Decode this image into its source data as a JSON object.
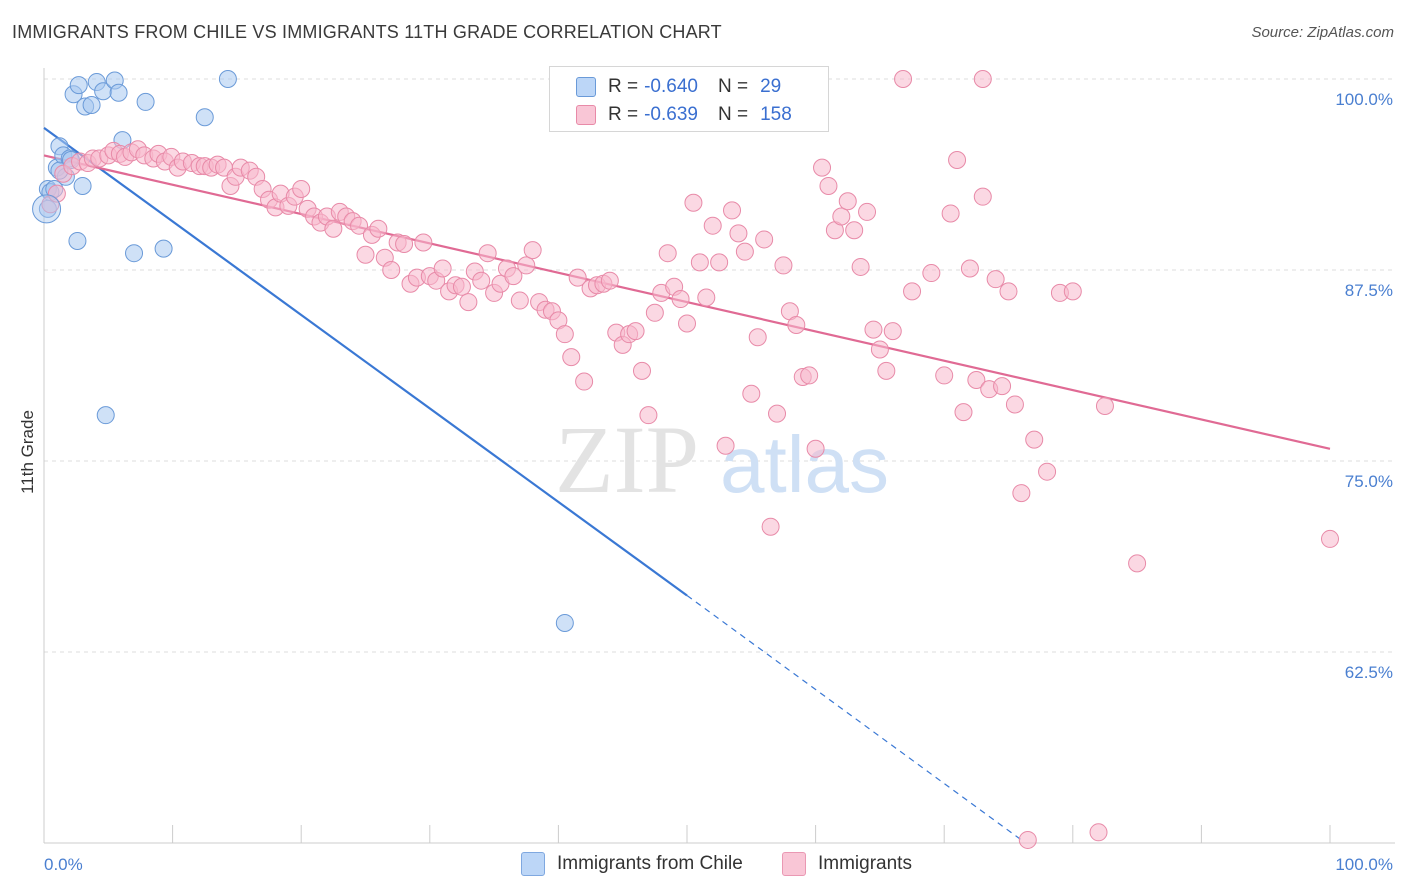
{
  "header": {
    "title": "IMMIGRANTS FROM CHILE VS IMMIGRANTS 11TH GRADE CORRELATION CHART",
    "source": "Source: ZipAtlas.com"
  },
  "legend": {
    "rows": [
      {
        "r_label": "R =",
        "r_value": "-0.640",
        "n_label": "N =",
        "n_value": "29",
        "color": "#a8c8f0",
        "border": "#6a9ad8"
      },
      {
        "r_label": "R =",
        "r_value": "-0.639",
        "n_label": "N =",
        "n_value": "158",
        "color": "#f7b8cc",
        "border": "#e88aa8"
      }
    ]
  },
  "bottom_legend": [
    {
      "label": "Immigrants from Chile",
      "color": "#bcd6f7",
      "border": "#7fa8e0"
    },
    {
      "label": "Immigrants",
      "color": "#f9c6d6",
      "border": "#ea98b3"
    }
  ],
  "watermark": {
    "zip": "ZIP",
    "atlas": "atlas"
  },
  "chart_data": {
    "type": "scatter",
    "xlabel": "",
    "ylabel": "11th Grade",
    "xlim": [
      0,
      100
    ],
    "ylim": [
      50,
      100
    ],
    "x_tick_labels": [
      {
        "value": 0,
        "label": "0.0%"
      },
      {
        "value": 100,
        "label": "100.0%"
      }
    ],
    "y_tick_labels": [
      {
        "value": 100,
        "label": "100.0%"
      },
      {
        "value": 87.5,
        "label": "87.5%"
      },
      {
        "value": 75,
        "label": "75.0%"
      },
      {
        "value": 62.5,
        "label": "62.5%"
      }
    ],
    "grid": "horizontal dashed",
    "series": [
      {
        "name": "Immigrants from Chile",
        "color": "#a8c8f0",
        "stroke": "#6a9ad8",
        "trend": {
          "x0": 0,
          "y0": 96.8,
          "x1": 50,
          "y1": 66.2,
          "dash_to_x": 76,
          "dash_to_y": 50.2,
          "color": "#3a78d4"
        },
        "points": [
          [
            0.3,
            92.8
          ],
          [
            0.5,
            92.6
          ],
          [
            0.8,
            92.8
          ],
          [
            1.0,
            94.2
          ],
          [
            1.2,
            95.6
          ],
          [
            1.5,
            95.0
          ],
          [
            1.7,
            93.6
          ],
          [
            2.0,
            94.8
          ],
          [
            2.3,
            99.0
          ],
          [
            2.7,
            99.6
          ],
          [
            3.2,
            98.2
          ],
          [
            3.7,
            98.3
          ],
          [
            4.1,
            99.8
          ],
          [
            4.6,
            99.2
          ],
          [
            5.5,
            99.9
          ],
          [
            5.8,
            99.1
          ],
          [
            6.1,
            96.0
          ],
          [
            7.9,
            98.5
          ],
          [
            12.5,
            97.5
          ],
          [
            14.3,
            100.0
          ],
          [
            3.0,
            93.0
          ],
          [
            0.3,
            91.5
          ],
          [
            2.6,
            89.4
          ],
          [
            7.0,
            88.6
          ],
          [
            9.3,
            88.9
          ],
          [
            4.8,
            78.0
          ],
          [
            40.5,
            64.4
          ],
          [
            1.2,
            94.0
          ],
          [
            2.1,
            94.7
          ]
        ]
      },
      {
        "name": "Immigrants",
        "color": "#f7b8cc",
        "stroke": "#e88aa8",
        "trend": {
          "x0": 0,
          "y0": 95.0,
          "x1": 100,
          "y1": 75.8,
          "color": "#e06a94"
        },
        "points": [
          [
            0.5,
            91.8
          ],
          [
            1.0,
            92.5
          ],
          [
            1.5,
            93.8
          ],
          [
            2.2,
            94.3
          ],
          [
            2.8,
            94.6
          ],
          [
            3.4,
            94.5
          ],
          [
            3.8,
            94.8
          ],
          [
            4.3,
            94.8
          ],
          [
            5.0,
            95.0
          ],
          [
            5.4,
            95.3
          ],
          [
            5.9,
            95.1
          ],
          [
            6.3,
            94.9
          ],
          [
            6.8,
            95.2
          ],
          [
            7.3,
            95.4
          ],
          [
            7.8,
            95.0
          ],
          [
            8.5,
            94.8
          ],
          [
            8.9,
            95.1
          ],
          [
            9.4,
            94.6
          ],
          [
            9.9,
            94.9
          ],
          [
            10.4,
            94.2
          ],
          [
            10.8,
            94.6
          ],
          [
            11.5,
            94.5
          ],
          [
            12.1,
            94.3
          ],
          [
            12.5,
            94.3
          ],
          [
            13.0,
            94.2
          ],
          [
            13.5,
            94.4
          ],
          [
            14.0,
            94.2
          ],
          [
            14.5,
            93.0
          ],
          [
            14.9,
            93.6
          ],
          [
            15.3,
            94.2
          ],
          [
            16.0,
            94.0
          ],
          [
            16.5,
            93.6
          ],
          [
            17.0,
            92.8
          ],
          [
            17.5,
            92.1
          ],
          [
            18.0,
            91.6
          ],
          [
            18.4,
            92.5
          ],
          [
            19.0,
            91.7
          ],
          [
            19.5,
            92.3
          ],
          [
            20.0,
            92.8
          ],
          [
            20.5,
            91.5
          ],
          [
            21.0,
            91.0
          ],
          [
            21.5,
            90.6
          ],
          [
            22.0,
            91.0
          ],
          [
            22.5,
            90.2
          ],
          [
            23.0,
            91.3
          ],
          [
            23.5,
            91.0
          ],
          [
            24.0,
            90.7
          ],
          [
            24.5,
            90.4
          ],
          [
            25.0,
            88.5
          ],
          [
            25.5,
            89.8
          ],
          [
            26.0,
            90.2
          ],
          [
            26.5,
            88.3
          ],
          [
            27.0,
            87.5
          ],
          [
            27.5,
            89.3
          ],
          [
            28.0,
            89.2
          ],
          [
            28.5,
            86.6
          ],
          [
            29.0,
            87.0
          ],
          [
            29.5,
            89.3
          ],
          [
            30.0,
            87.1
          ],
          [
            30.5,
            86.8
          ],
          [
            31.0,
            87.6
          ],
          [
            31.5,
            86.1
          ],
          [
            32.0,
            86.5
          ],
          [
            32.5,
            86.4
          ],
          [
            33.0,
            85.4
          ],
          [
            33.5,
            87.4
          ],
          [
            34.0,
            86.8
          ],
          [
            34.5,
            88.6
          ],
          [
            35.0,
            86.0
          ],
          [
            35.5,
            86.6
          ],
          [
            36.0,
            87.6
          ],
          [
            36.5,
            87.1
          ],
          [
            37.0,
            85.5
          ],
          [
            37.5,
            87.8
          ],
          [
            38.0,
            88.8
          ],
          [
            38.5,
            85.4
          ],
          [
            39.0,
            84.9
          ],
          [
            39.5,
            84.8
          ],
          [
            40.0,
            84.2
          ],
          [
            40.5,
            83.3
          ],
          [
            41.0,
            81.8
          ],
          [
            41.5,
            87.0
          ],
          [
            42.0,
            80.2
          ],
          [
            42.5,
            86.3
          ],
          [
            43.0,
            86.5
          ],
          [
            43.5,
            86.6
          ],
          [
            44.0,
            86.8
          ],
          [
            44.5,
            83.4
          ],
          [
            45.0,
            82.6
          ],
          [
            45.5,
            83.3
          ],
          [
            46.0,
            83.5
          ],
          [
            46.5,
            80.9
          ],
          [
            47.0,
            78.0
          ],
          [
            47.5,
            84.7
          ],
          [
            48.0,
            86.0
          ],
          [
            48.5,
            88.6
          ],
          [
            49.0,
            86.4
          ],
          [
            49.5,
            85.6
          ],
          [
            50.0,
            84.0
          ],
          [
            50.5,
            91.9
          ],
          [
            51.0,
            88.0
          ],
          [
            51.5,
            85.7
          ],
          [
            52.0,
            90.4
          ],
          [
            52.5,
            88.0
          ],
          [
            53.0,
            76.0
          ],
          [
            53.5,
            91.4
          ],
          [
            54.0,
            89.9
          ],
          [
            54.5,
            88.7
          ],
          [
            55.0,
            79.4
          ],
          [
            55.5,
            83.1
          ],
          [
            56.0,
            89.5
          ],
          [
            56.5,
            70.7
          ],
          [
            57.0,
            78.1
          ],
          [
            57.5,
            87.8
          ],
          [
            58.0,
            84.8
          ],
          [
            58.5,
            83.9
          ],
          [
            59.0,
            80.5
          ],
          [
            59.5,
            80.6
          ],
          [
            60.0,
            75.8
          ],
          [
            60.5,
            94.2
          ],
          [
            61.0,
            93.0
          ],
          [
            61.5,
            90.1
          ],
          [
            62.0,
            91.0
          ],
          [
            62.5,
            92.0
          ],
          [
            63.0,
            90.1
          ],
          [
            63.5,
            87.7
          ],
          [
            64.0,
            91.3
          ],
          [
            64.5,
            83.6
          ],
          [
            65.0,
            82.3
          ],
          [
            65.5,
            80.9
          ],
          [
            66.0,
            83.5
          ],
          [
            67.5,
            86.1
          ],
          [
            69.0,
            87.3
          ],
          [
            70.0,
            80.6
          ],
          [
            70.5,
            91.2
          ],
          [
            71.0,
            94.7
          ],
          [
            71.5,
            78.2
          ],
          [
            72.0,
            87.6
          ],
          [
            72.5,
            80.3
          ],
          [
            73.0,
            92.3
          ],
          [
            73.5,
            79.7
          ],
          [
            74.0,
            86.9
          ],
          [
            74.5,
            79.9
          ],
          [
            75.0,
            86.1
          ],
          [
            75.5,
            78.7
          ],
          [
            76.0,
            72.9
          ],
          [
            76.5,
            50.2
          ],
          [
            77.0,
            76.4
          ],
          [
            78.0,
            74.3
          ],
          [
            79.0,
            86.0
          ],
          [
            80.0,
            86.1
          ],
          [
            82.0,
            50.7
          ],
          [
            82.5,
            78.6
          ],
          [
            85.0,
            68.3
          ],
          [
            100.0,
            69.9
          ],
          [
            66.8,
            100.0
          ],
          [
            73.0,
            100.0
          ]
        ]
      }
    ]
  }
}
